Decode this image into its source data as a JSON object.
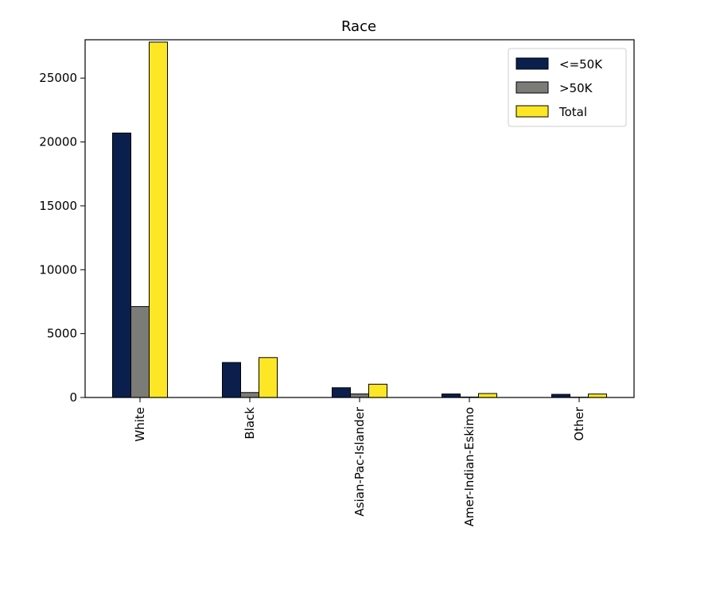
{
  "chart_data": {
    "type": "bar",
    "title": "Race",
    "xlabel": "",
    "ylabel": "",
    "categories": [
      "White",
      "Black",
      "Asian-Pac-Islander",
      "Amer-Indian-Eskimo",
      "Other"
    ],
    "series": [
      {
        "name": "<=50K",
        "color": "#0b1f4d",
        "values": [
          20699,
          2737,
          763,
          275,
          246
        ]
      },
      {
        "name": ">50K",
        "color": "#7b7b78",
        "values": [
          7117,
          387,
          276,
          36,
          25
        ]
      },
      {
        "name": "Total",
        "color": "#fde725",
        "values": [
          27816,
          3124,
          1039,
          311,
          271
        ]
      }
    ],
    "yticks": [
      0,
      5000,
      10000,
      15000,
      20000,
      25000
    ],
    "ylim": [
      0,
      28000
    ],
    "grid": false,
    "legend_position": "top-right"
  }
}
